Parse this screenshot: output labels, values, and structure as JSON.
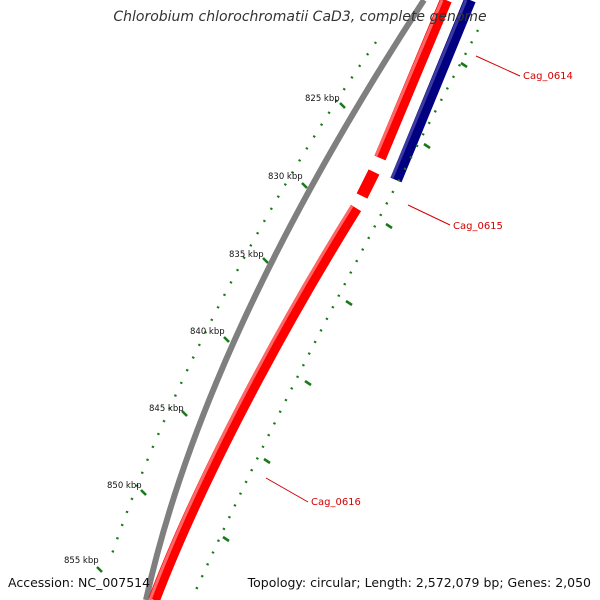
{
  "title": "Chlorobium chlorochromatii CaD3, complete genome",
  "footer": {
    "accession": "Accession: NC_007514",
    "summary": "Topology: circular; Length: 2,572,079 bp; Genes: 2,050"
  },
  "ticks": [
    "825 kbp",
    "830 kbp",
    "835 kbp",
    "840 kbp",
    "845 kbp",
    "850 kbp",
    "855 kbp"
  ],
  "genes": [
    "Cag_0614",
    "Cag_0615",
    "Cag_0616"
  ],
  "colors": {
    "backbone": "#7f7f7f",
    "forward_gene": "#ff0000",
    "reverse_gene": "#000080",
    "gc_skew": "#1a7a1a",
    "gene_label": "#d40000"
  }
}
